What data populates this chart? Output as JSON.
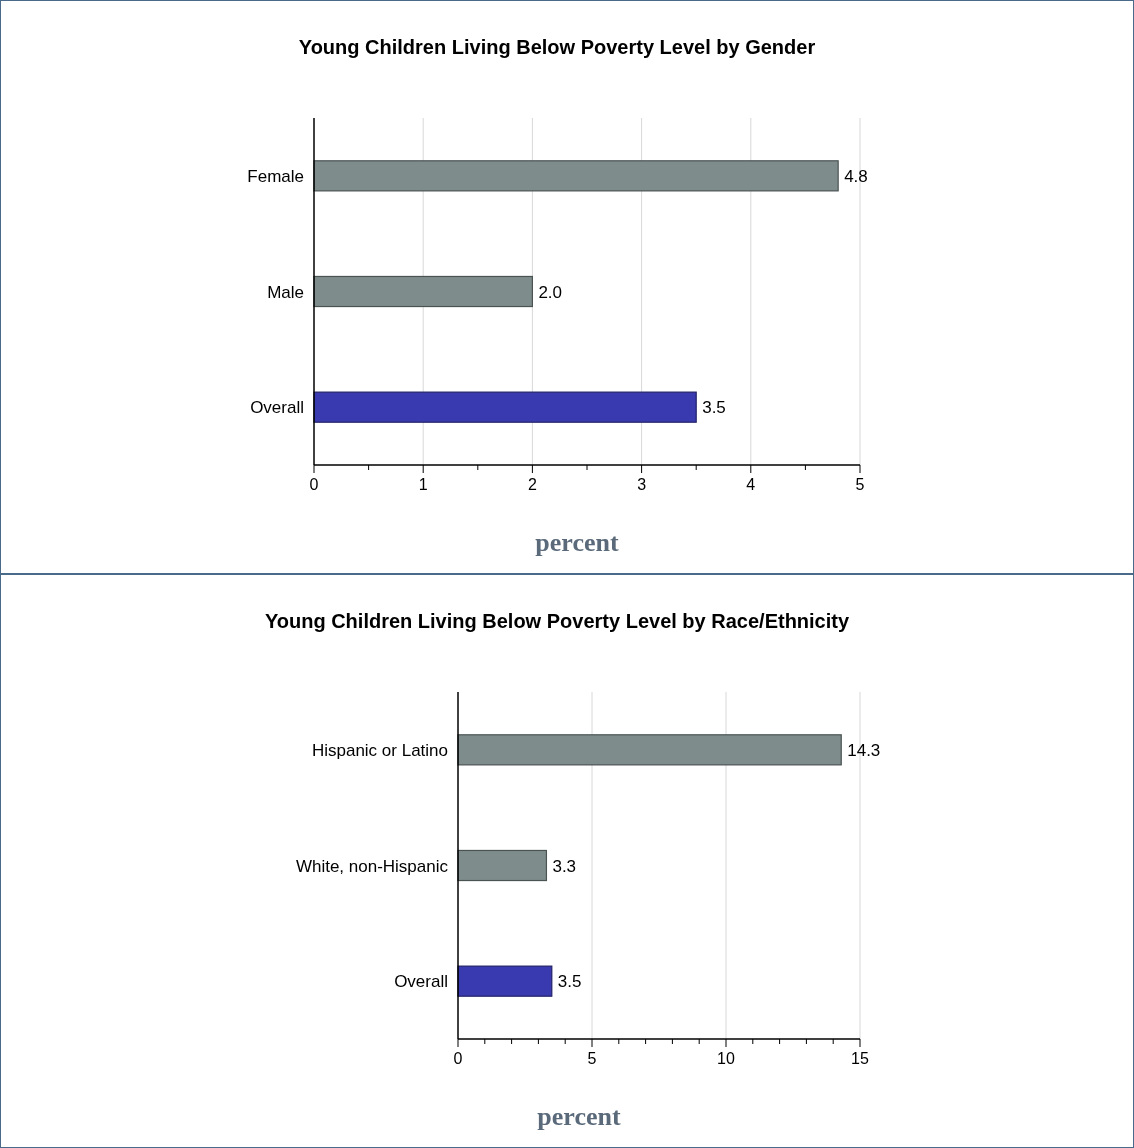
{
  "chart_data": [
    {
      "type": "bar",
      "orientation": "horizontal",
      "title": "Young Children Living Below Poverty Level by Gender",
      "xlabel": "percent",
      "categories": [
        "Female",
        "Male",
        "Overall"
      ],
      "values": [
        4.8,
        2.0,
        3.5
      ],
      "value_labels": [
        "4.8",
        "2.0",
        "3.5"
      ],
      "colors": [
        "#7f8c8c",
        "#7f8c8c",
        "#3a3ab0"
      ],
      "grid": "x",
      "xlim": [
        0,
        5
      ],
      "xticks": [
        0,
        {
          "value": 0.5,
          "label": null
        },
        1,
        {
          "value": 1.5,
          "label": null
        },
        2,
        {
          "value": 2.5,
          "label": null
        },
        3,
        {
          "value": 3.5,
          "label": null
        },
        4,
        {
          "value": 4.5,
          "label": null
        },
        5
      ]
    },
    {
      "type": "bar",
      "orientation": "horizontal",
      "title": "Young Children Living Below Poverty Level by Race/Ethnicity",
      "xlabel": "percent",
      "categories": [
        "Hispanic or Latino",
        "White, non-Hispanic",
        "Overall"
      ],
      "values": [
        14.3,
        3.3,
        3.5
      ],
      "value_labels": [
        "14.3",
        "3.3",
        "3.5"
      ],
      "colors": [
        "#7f8c8c",
        "#7f8c8c",
        "#3a3ab0"
      ],
      "grid": "x",
      "xlim": [
        0,
        15
      ],
      "xticks": [
        0,
        {
          "value": 1,
          "label": null
        },
        {
          "value": 2,
          "label": null
        },
        {
          "value": 3,
          "label": null
        },
        {
          "value": 4,
          "label": null
        },
        5,
        {
          "value": 6,
          "label": null
        },
        {
          "value": 7,
          "label": null
        },
        {
          "value": 8,
          "label": null
        },
        {
          "value": 9,
          "label": null
        },
        10,
        {
          "value": 11,
          "label": null
        },
        {
          "value": 12,
          "label": null
        },
        {
          "value": 13,
          "label": null
        },
        {
          "value": 14,
          "label": null
        },
        15
      ]
    }
  ]
}
